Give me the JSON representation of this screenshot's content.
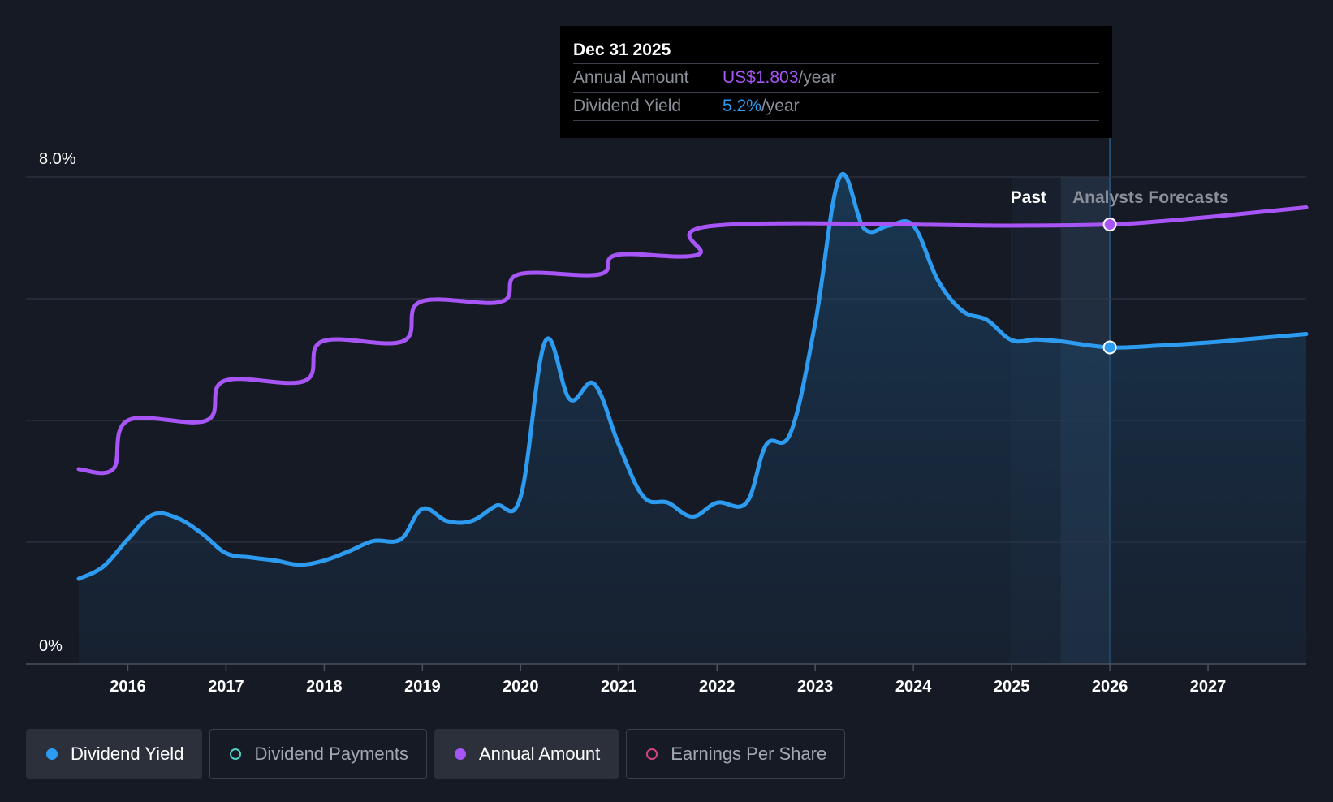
{
  "chart_data": {
    "type": "line",
    "y_axis": {
      "top_label": "8.0%",
      "bottom_label": "0%",
      "ylim": [
        0,
        8.0
      ],
      "grid_values": [
        0,
        2,
        4,
        6,
        8
      ]
    },
    "x_axis": {
      "ticks": [
        "2016",
        "2017",
        "2018",
        "2019",
        "2020",
        "2021",
        "2022",
        "2023",
        "2024",
        "2025",
        "2026",
        "2027"
      ],
      "range": [
        2015.5,
        2028.0
      ]
    },
    "regions": {
      "past_label": "Past",
      "forecast_label": "Analysts Forecasts",
      "past_start": 2025.0,
      "forecast_start": 2025.5,
      "current": 2026.0
    },
    "series": [
      {
        "name": "Dividend Yield",
        "color": "#2d9bf0",
        "fill": true,
        "points": [
          [
            2015.5,
            1.4
          ],
          [
            2015.75,
            1.6
          ],
          [
            2016.0,
            2.05
          ],
          [
            2016.25,
            2.45
          ],
          [
            2016.5,
            2.4
          ],
          [
            2016.75,
            2.15
          ],
          [
            2017.0,
            1.82
          ],
          [
            2017.25,
            1.75
          ],
          [
            2017.5,
            1.7
          ],
          [
            2017.75,
            1.63
          ],
          [
            2018.0,
            1.7
          ],
          [
            2018.25,
            1.85
          ],
          [
            2018.5,
            2.02
          ],
          [
            2018.78,
            2.05
          ],
          [
            2019.0,
            2.55
          ],
          [
            2019.25,
            2.35
          ],
          [
            2019.5,
            2.35
          ],
          [
            2019.75,
            2.6
          ],
          [
            2020.0,
            2.75
          ],
          [
            2020.25,
            5.3
          ],
          [
            2020.5,
            4.35
          ],
          [
            2020.75,
            4.6
          ],
          [
            2021.0,
            3.6
          ],
          [
            2021.25,
            2.75
          ],
          [
            2021.5,
            2.65
          ],
          [
            2021.75,
            2.42
          ],
          [
            2022.0,
            2.65
          ],
          [
            2022.3,
            2.65
          ],
          [
            2022.5,
            3.6
          ],
          [
            2022.75,
            3.8
          ],
          [
            2023.0,
            5.6
          ],
          [
            2023.25,
            8.0
          ],
          [
            2023.5,
            7.15
          ],
          [
            2023.75,
            7.2
          ],
          [
            2024.0,
            7.2
          ],
          [
            2024.25,
            6.3
          ],
          [
            2024.5,
            5.8
          ],
          [
            2024.75,
            5.65
          ],
          [
            2025.0,
            5.32
          ],
          [
            2025.25,
            5.33
          ],
          [
            2025.5,
            5.3
          ],
          [
            2026.0,
            5.2
          ],
          [
            2026.5,
            5.23
          ],
          [
            2027.0,
            5.28
          ],
          [
            2027.5,
            5.35
          ],
          [
            2028.0,
            5.42
          ]
        ],
        "marker": [
          2026.0,
          5.2
        ]
      },
      {
        "name": "Annual Amount",
        "color": "#a855f7",
        "fill": false,
        "step_points": [
          [
            2015.5,
            3.2
          ],
          [
            2015.85,
            3.2
          ],
          [
            2016.0,
            4.0
          ],
          [
            2016.8,
            4.0
          ],
          [
            2016.98,
            4.65
          ],
          [
            2017.8,
            4.65
          ],
          [
            2017.98,
            5.3
          ],
          [
            2018.8,
            5.3
          ],
          [
            2018.98,
            5.95
          ],
          [
            2019.8,
            5.95
          ],
          [
            2019.98,
            6.4
          ],
          [
            2020.8,
            6.4
          ],
          [
            2020.98,
            6.72
          ],
          [
            2021.8,
            6.72
          ],
          [
            2021.98,
            7.2
          ],
          [
            2025.0,
            7.2
          ],
          [
            2026.0,
            7.22
          ],
          [
            2026.5,
            7.27
          ],
          [
            2027.0,
            7.34
          ],
          [
            2027.5,
            7.42
          ],
          [
            2028.0,
            7.5
          ]
        ],
        "marker": [
          2026.0,
          7.22
        ]
      }
    ]
  },
  "tooltip": {
    "date": "Dec 31 2025",
    "rows": [
      {
        "label": "Annual Amount",
        "value": "US$1.803",
        "unit": "/year"
      },
      {
        "label": "Dividend Yield",
        "value": "5.2%",
        "unit": "/year"
      }
    ]
  },
  "legend": [
    {
      "label": "Dividend Yield",
      "state": "active",
      "color": "#2d9bf0"
    },
    {
      "label": "Dividend Payments",
      "state": "inactive",
      "color": "#4fd1c5"
    },
    {
      "label": "Annual Amount",
      "state": "active",
      "color": "#a855f7"
    },
    {
      "label": "Earnings Per Share",
      "state": "inactive",
      "color": "#d6457a"
    }
  ]
}
